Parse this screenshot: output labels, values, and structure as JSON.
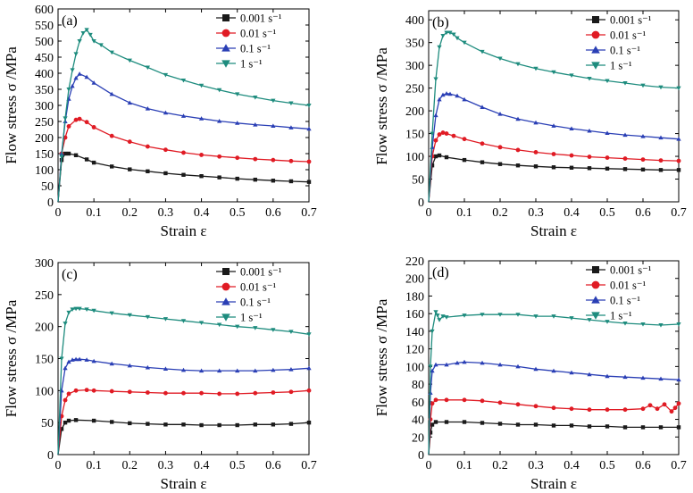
{
  "chart_data": [
    {
      "type": "line",
      "panel_label": "(a)",
      "xlabel": "Strain ε",
      "ylabel": "Flow stress σ /MPa",
      "xlim": [
        0,
        0.7
      ],
      "ylim": [
        0,
        600
      ],
      "xticks": [
        0,
        0.1,
        0.2,
        0.3,
        0.4,
        0.5,
        0.6,
        0.7
      ],
      "xtick_labels": [
        "0",
        "0.1",
        "0.2",
        "0.3",
        "0.4",
        "0.5",
        "0.6",
        "0.7"
      ],
      "yticks": [
        0,
        50,
        100,
        150,
        200,
        250,
        300,
        350,
        400,
        450,
        500,
        550,
        600
      ],
      "ytick_labels": [
        "0",
        "50",
        "100",
        "150",
        "200",
        "250",
        "300",
        "350",
        "400",
        "450",
        "500",
        "550",
        "600"
      ],
      "legend_position": "top-right",
      "series": [
        {
          "name": "0.001 s⁻¹",
          "color": "#1a1a1a",
          "marker": "square",
          "x": [
            0,
            0.01,
            0.02,
            0.03,
            0.05,
            0.08,
            0.1,
            0.15,
            0.2,
            0.25,
            0.3,
            0.35,
            0.4,
            0.45,
            0.5,
            0.55,
            0.6,
            0.65,
            0.7
          ],
          "y": [
            0,
            130,
            150,
            150,
            145,
            132,
            122,
            110,
            101,
            95,
            89,
            84,
            80,
            76,
            72,
            69,
            66,
            64,
            62
          ]
        },
        {
          "name": "0.01 s⁻¹",
          "color": "#e01b24",
          "marker": "circle",
          "x": [
            0,
            0.01,
            0.02,
            0.03,
            0.05,
            0.06,
            0.08,
            0.1,
            0.15,
            0.2,
            0.25,
            0.3,
            0.35,
            0.4,
            0.45,
            0.5,
            0.55,
            0.6,
            0.65,
            0.7
          ],
          "y": [
            0,
            150,
            200,
            235,
            255,
            258,
            248,
            232,
            205,
            187,
            172,
            162,
            153,
            146,
            141,
            137,
            133,
            130,
            127,
            125
          ]
        },
        {
          "name": "0.1 s⁻¹",
          "color": "#2a3fb5",
          "marker": "triangle-up",
          "x": [
            0,
            0.01,
            0.02,
            0.03,
            0.04,
            0.05,
            0.06,
            0.08,
            0.1,
            0.15,
            0.2,
            0.25,
            0.3,
            0.35,
            0.4,
            0.45,
            0.5,
            0.55,
            0.6,
            0.65,
            0.7
          ],
          "y": [
            0,
            150,
            250,
            320,
            360,
            385,
            398,
            388,
            370,
            335,
            308,
            290,
            277,
            267,
            259,
            251,
            245,
            240,
            236,
            231,
            227
          ]
        },
        {
          "name": "1 s⁻¹",
          "color": "#1e8c7e",
          "marker": "triangle-down",
          "x": [
            0,
            0.01,
            0.02,
            0.03,
            0.04,
            0.05,
            0.06,
            0.07,
            0.08,
            0.09,
            0.1,
            0.12,
            0.15,
            0.2,
            0.25,
            0.3,
            0.35,
            0.4,
            0.45,
            0.5,
            0.55,
            0.6,
            0.65,
            0.7
          ],
          "y": [
            0,
            140,
            260,
            350,
            410,
            460,
            500,
            525,
            535,
            520,
            500,
            488,
            465,
            440,
            418,
            395,
            378,
            362,
            348,
            335,
            325,
            315,
            307,
            300
          ]
        }
      ]
    },
    {
      "type": "line",
      "panel_label": "(b)",
      "xlabel": "Strain ε",
      "ylabel": "Flow stress σ /MPa",
      "xlim": [
        0,
        0.7
      ],
      "ylim": [
        0,
        420
      ],
      "xticks": [
        0,
        0.1,
        0.2,
        0.3,
        0.4,
        0.5,
        0.6,
        0.7
      ],
      "xtick_labels": [
        "0",
        "0.1",
        "0.2",
        "0.3",
        "0.4",
        "0.5",
        "0.6",
        "0.7"
      ],
      "yticks": [
        0,
        50,
        100,
        150,
        200,
        250,
        300,
        350,
        400
      ],
      "ytick_labels": [
        "0",
        "50",
        "100",
        "150",
        "200",
        "250",
        "300",
        "350",
        "400"
      ],
      "legend_position": "top-right",
      "series": [
        {
          "name": "0.001 s⁻¹",
          "color": "#1a1a1a",
          "marker": "square",
          "x": [
            0,
            0.01,
            0.02,
            0.03,
            0.05,
            0.1,
            0.15,
            0.2,
            0.25,
            0.3,
            0.35,
            0.4,
            0.45,
            0.5,
            0.55,
            0.6,
            0.65,
            0.7
          ],
          "y": [
            0,
            80,
            100,
            102,
            98,
            92,
            87,
            83,
            80,
            78,
            76,
            75,
            74,
            73,
            72,
            71,
            70,
            70
          ]
        },
        {
          "name": "0.01 s⁻¹",
          "color": "#e01b24",
          "marker": "circle",
          "x": [
            0,
            0.01,
            0.02,
            0.03,
            0.04,
            0.05,
            0.07,
            0.1,
            0.15,
            0.2,
            0.25,
            0.3,
            0.35,
            0.4,
            0.45,
            0.5,
            0.55,
            0.6,
            0.65,
            0.7
          ],
          "y": [
            0,
            100,
            135,
            148,
            152,
            150,
            145,
            138,
            128,
            120,
            114,
            109,
            105,
            102,
            99,
            97,
            95,
            93,
            91,
            90
          ]
        },
        {
          "name": "0.1 s⁻¹",
          "color": "#2a3fb5",
          "marker": "triangle-up",
          "x": [
            0,
            0.01,
            0.02,
            0.03,
            0.04,
            0.05,
            0.06,
            0.08,
            0.1,
            0.15,
            0.2,
            0.25,
            0.3,
            0.35,
            0.4,
            0.45,
            0.5,
            0.55,
            0.6,
            0.65,
            0.7
          ],
          "y": [
            0,
            120,
            190,
            225,
            235,
            238,
            237,
            233,
            225,
            208,
            193,
            182,
            174,
            167,
            161,
            156,
            151,
            147,
            144,
            141,
            138
          ]
        },
        {
          "name": "1 s⁻¹",
          "color": "#1e8c7e",
          "marker": "triangle-down",
          "x": [
            0,
            0.01,
            0.02,
            0.03,
            0.04,
            0.05,
            0.06,
            0.07,
            0.08,
            0.1,
            0.15,
            0.2,
            0.25,
            0.3,
            0.35,
            0.4,
            0.45,
            0.5,
            0.55,
            0.6,
            0.65,
            0.7
          ],
          "y": [
            0,
            150,
            270,
            340,
            365,
            372,
            372,
            368,
            360,
            350,
            330,
            315,
            303,
            293,
            285,
            278,
            271,
            266,
            261,
            256,
            252,
            250
          ]
        }
      ]
    },
    {
      "type": "line",
      "panel_label": "(c)",
      "xlabel": "Strain ε",
      "ylabel": "Flow stress σ /MPa",
      "xlim": [
        0,
        0.7
      ],
      "ylim": [
        0,
        300
      ],
      "xticks": [
        0,
        0.1,
        0.2,
        0.3,
        0.4,
        0.5,
        0.6,
        0.7
      ],
      "xtick_labels": [
        "0",
        "0.1",
        "0.2",
        "0.3",
        "0.4",
        "0.5",
        "0.6",
        "0.7"
      ],
      "yticks": [
        0,
        50,
        100,
        150,
        200,
        250,
        300
      ],
      "ytick_labels": [
        "0",
        "50",
        "100",
        "150",
        "200",
        "250",
        "300"
      ],
      "legend_position": "top-right",
      "series": [
        {
          "name": "0.001 s⁻¹",
          "color": "#1a1a1a",
          "marker": "square",
          "x": [
            0,
            0.01,
            0.02,
            0.03,
            0.05,
            0.1,
            0.15,
            0.2,
            0.25,
            0.3,
            0.35,
            0.4,
            0.45,
            0.5,
            0.55,
            0.6,
            0.65,
            0.7
          ],
          "y": [
            0,
            40,
            50,
            53,
            54,
            53,
            51,
            49,
            48,
            47,
            47,
            46,
            46,
            46,
            47,
            47,
            48,
            50
          ]
        },
        {
          "name": "0.01 s⁻¹",
          "color": "#e01b24",
          "marker": "circle",
          "x": [
            0,
            0.01,
            0.02,
            0.03,
            0.05,
            0.08,
            0.1,
            0.15,
            0.2,
            0.25,
            0.3,
            0.35,
            0.4,
            0.45,
            0.5,
            0.55,
            0.6,
            0.65,
            0.7
          ],
          "y": [
            0,
            60,
            85,
            95,
            100,
            101,
            100,
            99,
            98,
            97,
            96,
            96,
            96,
            95,
            95,
            96,
            97,
            98,
            100
          ]
        },
        {
          "name": "0.1 s⁻¹",
          "color": "#2a3fb5",
          "marker": "triangle-up",
          "x": [
            0,
            0.01,
            0.02,
            0.03,
            0.04,
            0.05,
            0.06,
            0.08,
            0.1,
            0.15,
            0.2,
            0.25,
            0.3,
            0.35,
            0.4,
            0.45,
            0.5,
            0.55,
            0.6,
            0.65,
            0.7
          ],
          "y": [
            0,
            100,
            135,
            145,
            148,
            149,
            149,
            148,
            146,
            142,
            139,
            136,
            134,
            132,
            131,
            131,
            131,
            131,
            132,
            133,
            135
          ]
        },
        {
          "name": "1 s⁻¹",
          "color": "#1e8c7e",
          "marker": "triangle-down",
          "x": [
            0,
            0.01,
            0.02,
            0.03,
            0.04,
            0.05,
            0.06,
            0.08,
            0.1,
            0.15,
            0.2,
            0.25,
            0.3,
            0.35,
            0.4,
            0.45,
            0.5,
            0.55,
            0.6,
            0.65,
            0.7
          ],
          "y": [
            0,
            150,
            205,
            222,
            227,
            228,
            228,
            227,
            225,
            221,
            218,
            215,
            212,
            209,
            206,
            203,
            200,
            198,
            195,
            192,
            188
          ]
        }
      ]
    },
    {
      "type": "line",
      "panel_label": "(d)",
      "xlabel": "Strain ε",
      "ylabel": "Flow stress σ /MPa",
      "xlim": [
        0,
        0.7
      ],
      "ylim": [
        0,
        220
      ],
      "xticks": [
        0,
        0.1,
        0.2,
        0.3,
        0.4,
        0.5,
        0.6,
        0.7
      ],
      "xtick_labels": [
        "0",
        "0.1",
        "0.2",
        "0.3",
        "0.4",
        "0.5",
        "0.6",
        "0.7"
      ],
      "yticks": [
        0,
        20,
        40,
        60,
        80,
        100,
        120,
        140,
        160,
        180,
        200,
        220
      ],
      "ytick_labels": [
        "0",
        "20",
        "40",
        "60",
        "80",
        "100",
        "120",
        "140",
        "160",
        "180",
        "200",
        "220"
      ],
      "legend_position": "top-right",
      "series": [
        {
          "name": "0.001 s⁻¹",
          "color": "#1a1a1a",
          "marker": "square",
          "x": [
            0,
            0.005,
            0.01,
            0.02,
            0.05,
            0.1,
            0.15,
            0.2,
            0.25,
            0.3,
            0.35,
            0.4,
            0.45,
            0.5,
            0.55,
            0.6,
            0.65,
            0.7
          ],
          "y": [
            0,
            25,
            34,
            37,
            37,
            37,
            36,
            35,
            34,
            34,
            33,
            33,
            32,
            32,
            31,
            31,
            31,
            31
          ]
        },
        {
          "name": "0.01 s⁻¹",
          "color": "#e01b24",
          "marker": "circle",
          "x": [
            0,
            0.005,
            0.01,
            0.02,
            0.05,
            0.1,
            0.15,
            0.2,
            0.25,
            0.3,
            0.35,
            0.4,
            0.45,
            0.5,
            0.55,
            0.6,
            0.62,
            0.64,
            0.66,
            0.68,
            0.69,
            0.7
          ],
          "y": [
            0,
            40,
            58,
            62,
            62,
            62,
            61,
            59,
            57,
            55,
            53,
            52,
            51,
            51,
            51,
            52,
            56,
            52,
            57,
            49,
            53,
            58
          ]
        },
        {
          "name": "0.1 s⁻¹",
          "color": "#2a3fb5",
          "marker": "triangle-up",
          "x": [
            0,
            0.005,
            0.01,
            0.02,
            0.05,
            0.08,
            0.1,
            0.15,
            0.2,
            0.25,
            0.3,
            0.35,
            0.4,
            0.45,
            0.5,
            0.55,
            0.6,
            0.65,
            0.7
          ],
          "y": [
            0,
            70,
            95,
            102,
            102,
            104,
            105,
            104,
            102,
            100,
            97,
            95,
            93,
            91,
            89,
            88,
            87,
            86,
            85
          ]
        },
        {
          "name": "1 s⁻¹",
          "color": "#1e8c7e",
          "marker": "triangle-down",
          "x": [
            0,
            0.005,
            0.01,
            0.02,
            0.025,
            0.03,
            0.04,
            0.05,
            0.1,
            0.15,
            0.2,
            0.25,
            0.3,
            0.35,
            0.4,
            0.45,
            0.5,
            0.55,
            0.6,
            0.65,
            0.7
          ],
          "y": [
            0,
            100,
            140,
            162,
            158,
            153,
            157,
            156,
            158,
            159,
            159,
            159,
            157,
            157,
            155,
            153,
            151,
            149,
            148,
            147,
            148
          ]
        }
      ]
    }
  ]
}
